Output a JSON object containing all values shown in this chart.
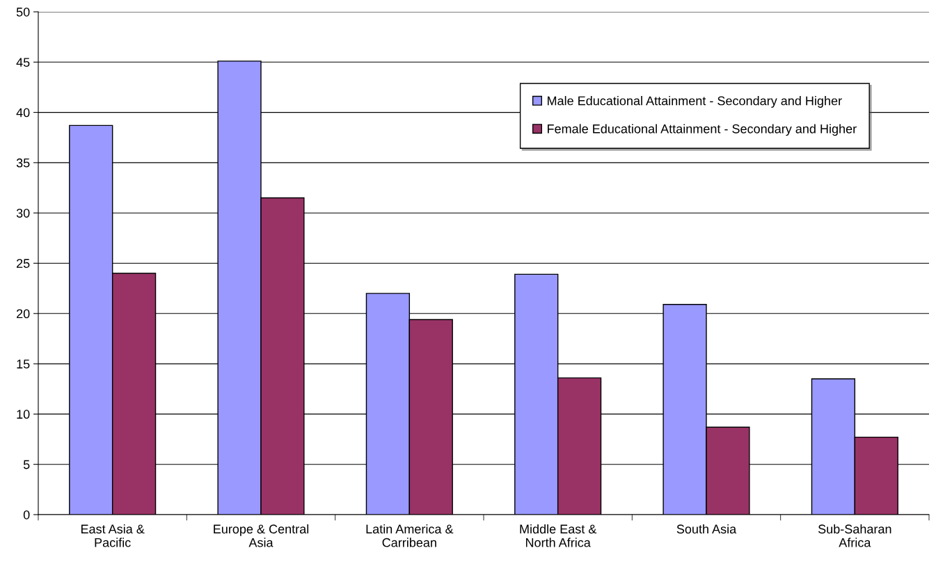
{
  "chart_data": {
    "type": "bar",
    "categories": [
      "East Asia & Pacific",
      "Europe & Central Asia",
      "Latin America & Carribean",
      "Middle East & North Africa",
      "South Asia",
      "Sub-Saharan Africa"
    ],
    "series": [
      {
        "name": "Male Educational Attainment - Secondary and Higher",
        "color": "#9999ff",
        "values": [
          38.7,
          45.1,
          22.0,
          23.9,
          20.9,
          13.5
        ]
      },
      {
        "name": "Female Educational Attainment - Secondary and Higher",
        "color": "#993366",
        "values": [
          24.0,
          31.5,
          19.4,
          13.6,
          8.7,
          7.7
        ]
      }
    ],
    "ylim": [
      0,
      50
    ],
    "yticks": [
      0,
      5,
      10,
      15,
      20,
      25,
      30,
      35,
      40,
      45,
      50
    ],
    "grid": "y",
    "legend": "top right"
  }
}
